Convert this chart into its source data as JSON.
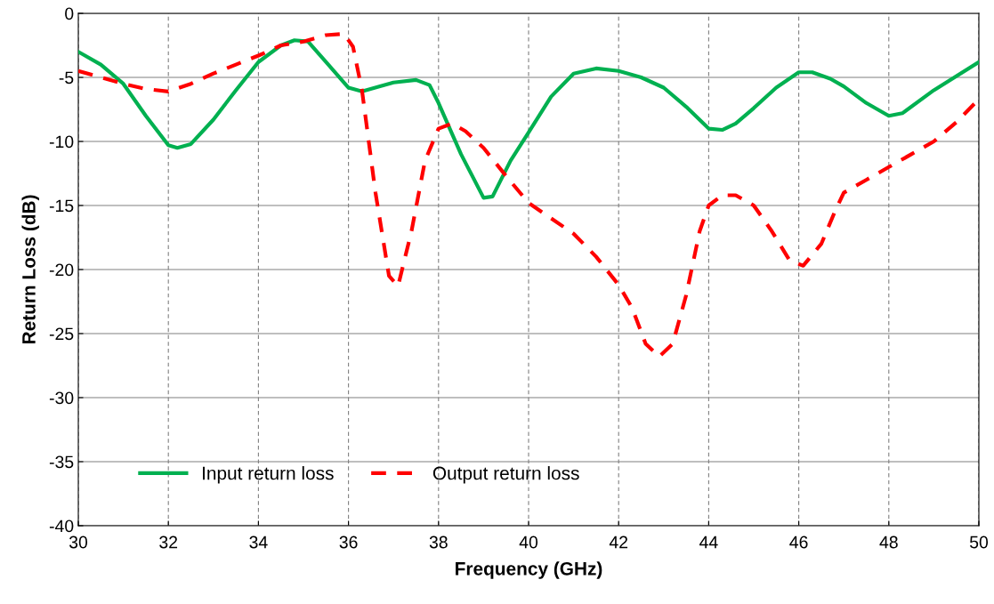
{
  "chart_data": {
    "type": "line",
    "xlabel": "Frequency (GHz)",
    "ylabel": "Return Loss (dB)",
    "xlim": [
      30,
      50
    ],
    "xticks": [
      30,
      32,
      34,
      36,
      38,
      40,
      42,
      44,
      46,
      48,
      50
    ],
    "ylim": [
      -40,
      0
    ],
    "yticks": [
      -40,
      -35,
      -30,
      -25,
      -20,
      -15,
      -10,
      -5,
      0
    ],
    "grid": true,
    "legend": "bottom left",
    "marker": "none",
    "series": [
      {
        "name": "Input return loss",
        "color": "#00b050",
        "line_style": "solid",
        "x": [
          30,
          30.5,
          31,
          31.5,
          32,
          32.2,
          32.5,
          33,
          33.5,
          34,
          34.5,
          34.8,
          35.1,
          35.5,
          36,
          36.3,
          36.7,
          37,
          37.5,
          37.8,
          38,
          38.5,
          39,
          39.2,
          39.6,
          40,
          40.5,
          41,
          41.5,
          42,
          42.5,
          43,
          43.5,
          44,
          44.3,
          44.6,
          45,
          45.5,
          46,
          46.3,
          46.7,
          47,
          47.5,
          48,
          48.3,
          49,
          50
        ],
        "values": [
          -3,
          -4,
          -5.5,
          -8,
          -10.3,
          -10.5,
          -10.2,
          -8.3,
          -6,
          -3.8,
          -2.5,
          -2.1,
          -2.2,
          -3.8,
          -5.8,
          -6.1,
          -5.7,
          -5.4,
          -5.2,
          -5.6,
          -7,
          -11,
          -14.4,
          -14.3,
          -11.5,
          -9.3,
          -6.5,
          -4.7,
          -4.3,
          -4.5,
          -5,
          -5.8,
          -7.3,
          -9,
          -9.1,
          -8.6,
          -7.4,
          -5.8,
          -4.6,
          -4.6,
          -5.1,
          -5.7,
          -7,
          -8,
          -7.8,
          -6,
          -3.8
        ]
      },
      {
        "name": "Output return loss",
        "color": "#ff0000",
        "line_style": "dashed",
        "x": [
          30,
          30.5,
          31,
          31.5,
          32,
          32.5,
          33,
          33.5,
          34,
          34.5,
          35,
          35.5,
          35.9,
          36.1,
          36.3,
          36.6,
          36.9,
          37.1,
          37.4,
          37.7,
          38,
          38.3,
          38.6,
          39,
          39.5,
          40,
          40.5,
          41,
          41.5,
          42,
          42.3,
          42.6,
          42.9,
          43.2,
          43.5,
          43.8,
          44,
          44.3,
          44.6,
          45,
          45.4,
          45.8,
          46.1,
          46.5,
          46.8,
          47,
          47.5,
          48,
          48.5,
          49,
          49.5,
          50
        ],
        "values": [
          -4.5,
          -5,
          -5.5,
          -5.9,
          -6.1,
          -5.5,
          -4.7,
          -4,
          -3.3,
          -2.5,
          -2.2,
          -1.7,
          -1.6,
          -2.6,
          -6,
          -14,
          -20.5,
          -21.3,
          -17,
          -11.5,
          -9,
          -8.6,
          -9.2,
          -10.5,
          -12.7,
          -14.8,
          -16,
          -17.2,
          -19,
          -21.2,
          -23,
          -25.8,
          -26.8,
          -25.8,
          -22,
          -17,
          -15,
          -14.2,
          -14.2,
          -15,
          -17,
          -19.3,
          -19.7,
          -18,
          -15.5,
          -14,
          -13,
          -12,
          -11,
          -10,
          -8.5,
          -6.7
        ]
      }
    ]
  }
}
